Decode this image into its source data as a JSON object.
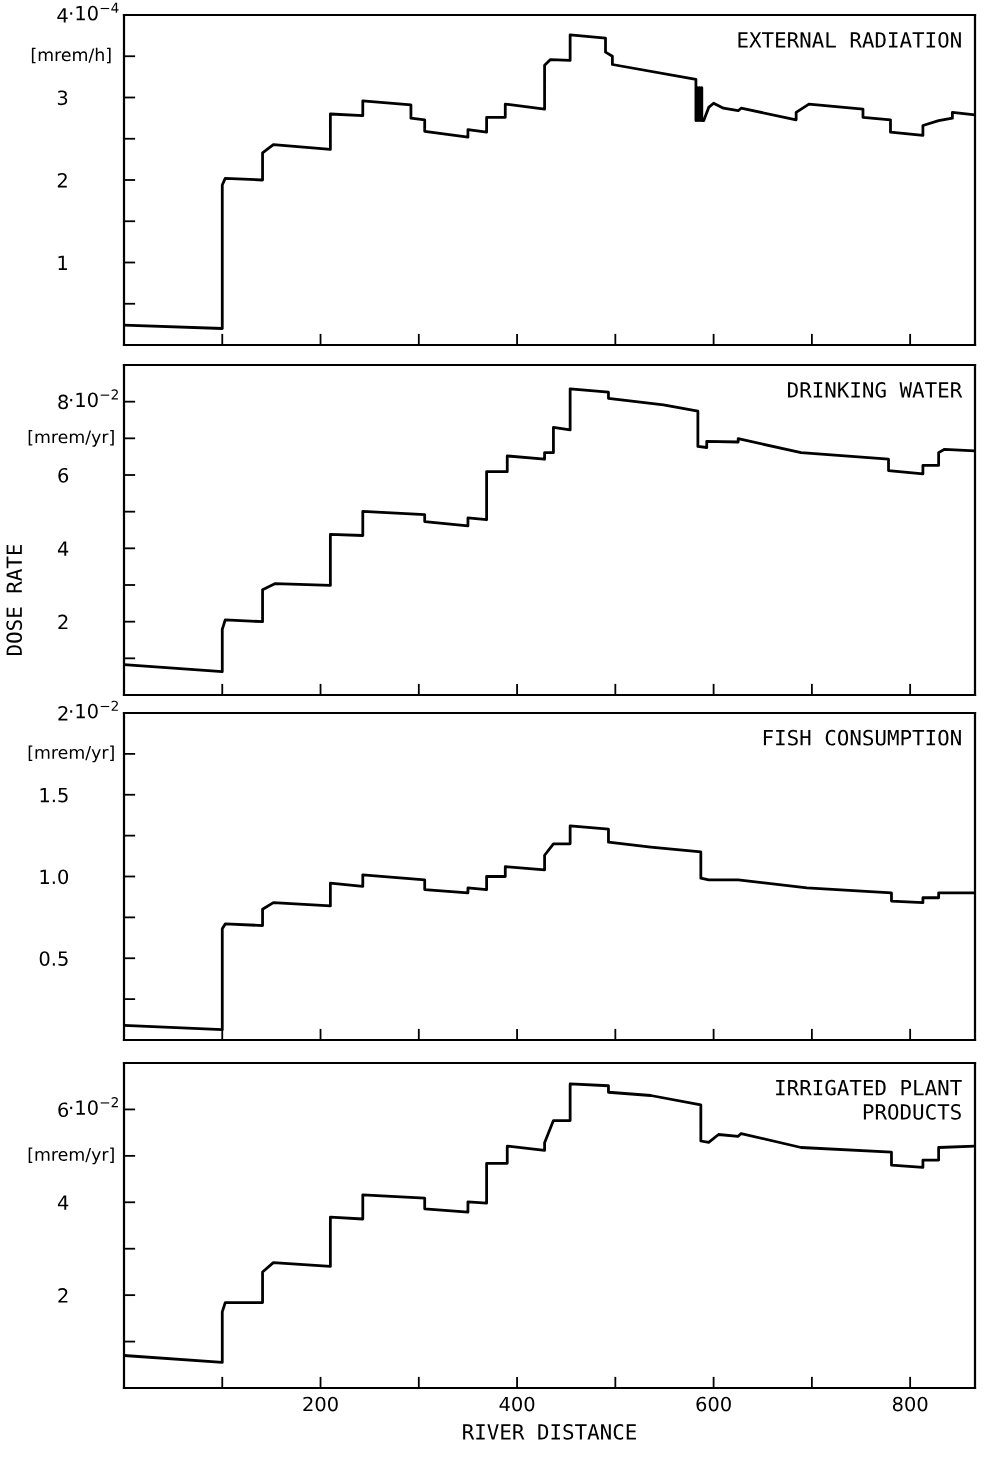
{
  "chart_data": [
    {
      "type": "line",
      "title": "EXTERNAL RADIATION",
      "ylabel": "[mrem/h]",
      "color": "#000000",
      "xlim": [
        0,
        866
      ],
      "ylim": [
        0,
        4.0
      ],
      "xticks": [
        100,
        200,
        300,
        400,
        500,
        600,
        700,
        800
      ],
      "yticks": [
        {
          "value": 0.5,
          "label": null
        },
        1,
        {
          "value": 1.5,
          "label": null
        },
        2,
        {
          "value": 2.5,
          "label": null
        },
        3,
        {
          "value": 3.5,
          "label": null
        },
        {
          "value": 4,
          "label": "4"
        }
      ],
      "annotations": [
        "·10$^{−4}$"
      ],
      "tick_labels": "y",
      "grid": false,
      "legend": false,
      "x": [
        0,
        100,
        100,
        103,
        141,
        141,
        152,
        210,
        210,
        243,
        243,
        292,
        292,
        306,
        306,
        350,
        350,
        369,
        369,
        388,
        388,
        428,
        428,
        434,
        454,
        454,
        490,
        490,
        497,
        497,
        582,
        582,
        584,
        584,
        586,
        586,
        588,
        588,
        590,
        595,
        600,
        610,
        625,
        628,
        684,
        684,
        697,
        752,
        752,
        780,
        780,
        813,
        813,
        829,
        843,
        843,
        866
      ],
      "values": [
        0.24,
        0.2,
        1.94,
        2.02,
        2.0,
        2.33,
        2.43,
        2.37,
        2.8,
        2.78,
        2.96,
        2.91,
        2.75,
        2.73,
        2.59,
        2.52,
        2.61,
        2.58,
        2.76,
        2.76,
        2.92,
        2.86,
        3.39,
        3.46,
        3.45,
        3.76,
        3.72,
        3.55,
        3.5,
        3.4,
        3.22,
        2.72,
        3.12,
        2.72,
        3.12,
        2.72,
        3.12,
        2.72,
        2.72,
        2.88,
        2.93,
        2.87,
        2.84,
        2.87,
        2.73,
        2.82,
        2.92,
        2.86,
        2.76,
        2.73,
        2.58,
        2.54,
        2.66,
        2.72,
        2.75,
        2.82,
        2.79
      ]
    },
    {
      "type": "line",
      "title": "DRINKING WATER",
      "ylabel": "[mrem/yr]",
      "annotations": [
        "·10$^{−2}$",
        "DOSE RATE"
      ],
      "color": "#000000",
      "xlim": [
        0,
        866
      ],
      "ylim": [
        0,
        9.0
      ],
      "xticks": [
        100,
        200,
        300,
        400,
        500,
        600,
        700,
        800
      ],
      "yticks": [
        {
          "value": 1,
          "label": null
        },
        2,
        {
          "value": 3,
          "label": null
        },
        4,
        {
          "value": 5,
          "label": null
        },
        6,
        {
          "value": 7,
          "label": null
        },
        {
          "value": 8,
          "label": "8"
        }
      ],
      "tick_labels": "y",
      "grid": false,
      "legend": false,
      "x": [
        0,
        100,
        100,
        103,
        141,
        141,
        154,
        210,
        210,
        243,
        243,
        306,
        306,
        350,
        350,
        369,
        369,
        372,
        390,
        390,
        428,
        428,
        437,
        437,
        454,
        454,
        493,
        493,
        549,
        584,
        584,
        593,
        593,
        625,
        625,
        689,
        778,
        778,
        813,
        813,
        829,
        829,
        835,
        866
      ],
      "values": [
        0.83,
        0.64,
        1.79,
        2.05,
        2.0,
        2.87,
        3.04,
        2.99,
        4.38,
        4.35,
        5.01,
        4.92,
        4.73,
        4.61,
        4.83,
        4.78,
        6.09,
        6.09,
        6.09,
        6.52,
        6.43,
        6.61,
        6.61,
        7.3,
        7.23,
        8.35,
        8.26,
        8.09,
        7.91,
        7.74,
        6.78,
        6.75,
        6.92,
        6.9,
        6.99,
        6.61,
        6.43,
        6.12,
        6.03,
        6.26,
        6.26,
        6.61,
        6.7,
        6.66
      ]
    },
    {
      "type": "line",
      "title": "FISH CONSUMPTION",
      "ylabel": "[mrem/yr]",
      "color": "#000000",
      "xlim": [
        0,
        866
      ],
      "ylim": [
        0,
        2.0
      ],
      "xticks": [
        100,
        200,
        300,
        400,
        500,
        600,
        700,
        800
      ],
      "yticks": [
        {
          "value": 0.25,
          "label": null
        },
        {
          "value": 0.5,
          "label": "0.5"
        },
        {
          "value": 0.75,
          "label": null
        },
        {
          "value": 1.0,
          "label": "1.0"
        },
        {
          "value": 1.25,
          "label": null
        },
        1.5,
        {
          "value": 1.75,
          "label": null
        },
        {
          "value": 2,
          "label": "2"
        }
      ],
      "annotations": [
        "·10$^{−2}$"
      ],
      "tick_labels": "y",
      "grid": false,
      "legend": false,
      "x": [
        0,
        100,
        100,
        103,
        141,
        141,
        152,
        210,
        210,
        243,
        243,
        306,
        306,
        350,
        350,
        369,
        369,
        388,
        388,
        428,
        428,
        437,
        454,
        454,
        493,
        493,
        536,
        587,
        587,
        595,
        625,
        695,
        781,
        781,
        813,
        813,
        829,
        829,
        866
      ],
      "values": [
        0.09,
        0.063,
        0.68,
        0.71,
        0.7,
        0.8,
        0.84,
        0.82,
        0.96,
        0.94,
        1.01,
        0.98,
        0.92,
        0.9,
        0.93,
        0.92,
        1.0,
        1.0,
        1.06,
        1.04,
        1.13,
        1.2,
        1.2,
        1.31,
        1.29,
        1.21,
        1.18,
        1.15,
        0.99,
        0.98,
        0.98,
        0.93,
        0.9,
        0.85,
        0.84,
        0.87,
        0.87,
        0.9,
        0.9
      ]
    },
    {
      "type": "line",
      "title": "IRRIGATED PLANT\nPRODUCTS",
      "ylabel": "[mrem/yr]",
      "xlabel": "RIVER DISTANCE",
      "color": "#000000",
      "xlim": [
        0,
        866
      ],
      "ylim": [
        0,
        7.0
      ],
      "xticks": [
        {
          "value": 100,
          "label": null
        },
        200,
        {
          "value": 300,
          "label": null
        },
        400,
        {
          "value": 500,
          "label": null
        },
        600,
        {
          "value": 700,
          "label": null
        },
        800
      ],
      "yticks": [
        {
          "value": 1,
          "label": null
        },
        2,
        {
          "value": 3,
          "label": null
        },
        4,
        {
          "value": 5,
          "label": null
        },
        {
          "value": 6,
          "label": "6"
        }
      ],
      "annotations": [
        "·10$^{−2}$"
      ],
      "grid": false,
      "legend": false,
      "x": [
        0,
        100,
        100,
        103,
        141,
        141,
        152,
        210,
        210,
        243,
        243,
        306,
        306,
        350,
        350,
        369,
        369,
        390,
        390,
        428,
        428,
        437,
        454,
        454,
        493,
        493,
        536,
        587,
        587,
        595,
        605,
        625,
        628,
        689,
        781,
        781,
        813,
        813,
        829,
        829,
        866
      ],
      "values": [
        0.7,
        0.55,
        1.64,
        1.84,
        1.84,
        2.5,
        2.7,
        2.62,
        3.68,
        3.64,
        4.16,
        4.09,
        3.86,
        3.79,
        4.01,
        3.98,
        4.84,
        4.84,
        5.21,
        5.12,
        5.28,
        5.76,
        5.76,
        6.55,
        6.51,
        6.37,
        6.3,
        6.1,
        5.32,
        5.29,
        5.46,
        5.42,
        5.48,
        5.18,
        5.08,
        4.8,
        4.75,
        4.91,
        4.91,
        5.18,
        5.21
      ]
    }
  ]
}
